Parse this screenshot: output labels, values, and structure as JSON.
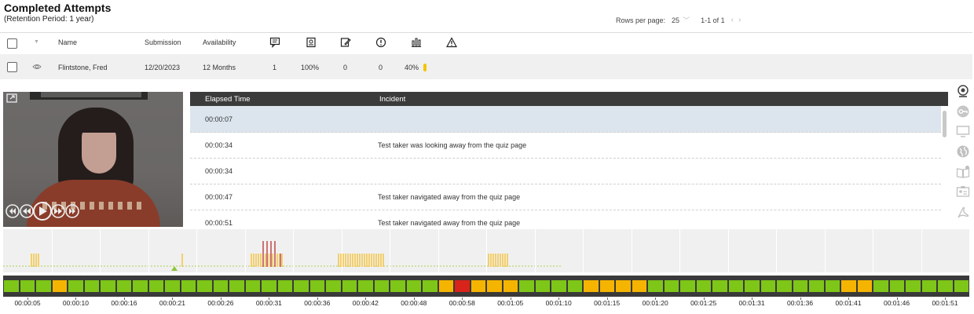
{
  "header": {
    "title": "Completed Attempts",
    "subtitle": "(Retention Period: 1 year)"
  },
  "pager": {
    "rows_label": "Rows per page:",
    "rows_value": "25",
    "range": "1-1 of 1"
  },
  "table": {
    "columns": {
      "name": "Name",
      "submission": "Submission",
      "availability": "Availability"
    },
    "icon_columns": [
      "feedback-icon",
      "score-icon",
      "edit-icon",
      "alert-circle-icon",
      "chart-icon",
      "warning-icon"
    ],
    "rows": [
      {
        "name": "Flintstone, Fred",
        "submission": "12/20/2023",
        "availability": "12 Months",
        "c1": "1",
        "c2": "100%",
        "c3": "0",
        "c4": "0",
        "c5": "40%"
      }
    ]
  },
  "incidents": {
    "columns": {
      "time": "Elapsed Time",
      "incident": "Incident"
    },
    "rows": [
      {
        "time": "00:00:07",
        "incident": "",
        "selected": true
      },
      {
        "time": "00:00:34",
        "incident": "Test taker was looking away from the quiz page"
      },
      {
        "time": "00:00:34",
        "incident": ""
      },
      {
        "time": "00:00:47",
        "incident": "Test taker navigated away from the quiz page"
      },
      {
        "time": "00:00:51",
        "incident": "Test taker navigated away from the quiz page"
      }
    ]
  },
  "side_icons": [
    "webcam-icon",
    "key-icon",
    "screen-icon",
    "globe-icon",
    "book-icon",
    "id-card-icon",
    "pdf-icon"
  ],
  "timeline": {
    "colors": {
      "ok": "#7ec618",
      "warn": "#f5b400",
      "alert": "#d9241b"
    },
    "segments": [
      "ok",
      "ok",
      "ok",
      "warn",
      "ok",
      "ok",
      "ok",
      "ok",
      "ok",
      "ok",
      "ok",
      "ok",
      "ok",
      "ok",
      "ok",
      "ok",
      "ok",
      "ok",
      "ok",
      "ok",
      "ok",
      "ok",
      "ok",
      "ok",
      "ok",
      "ok",
      "ok",
      "warn",
      "alert",
      "warn",
      "warn",
      "warn",
      "ok",
      "ok",
      "ok",
      "ok",
      "warn",
      "warn",
      "warn",
      "warn",
      "ok",
      "ok",
      "ok",
      "ok",
      "ok",
      "ok",
      "ok",
      "ok",
      "ok",
      "ok",
      "ok",
      "ok",
      "warn",
      "warn",
      "ok",
      "ok",
      "ok",
      "ok",
      "ok",
      "ok"
    ],
    "labels": [
      "00:00:05",
      "00:00:10",
      "00:00:16",
      "00:00:21",
      "00:00:26",
      "00:00:31",
      "00:00:36",
      "00:00:42",
      "00:00:48",
      "00:00:58",
      "00:01:05",
      "00:01:10",
      "00:01:15",
      "00:01:20",
      "00:01:25",
      "00:01:31",
      "00:01:36",
      "00:01:41",
      "00:01:46",
      "00:01:51"
    ]
  }
}
